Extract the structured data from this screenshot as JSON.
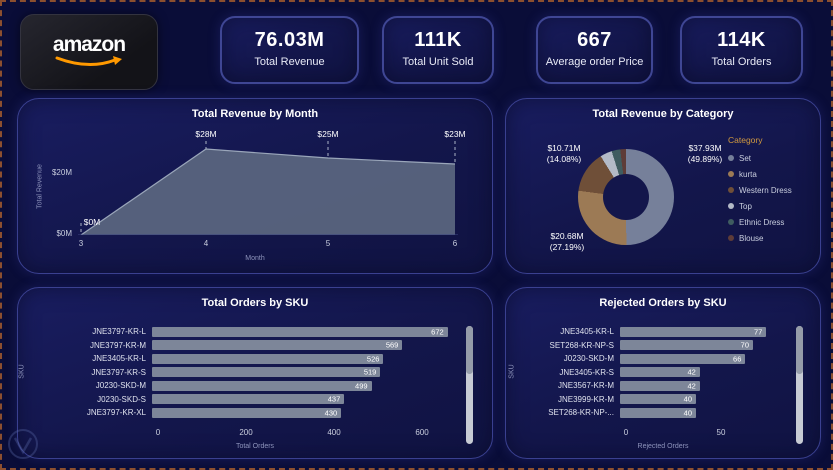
{
  "brand": {
    "name": "amazon"
  },
  "kpis": [
    {
      "value": "76.03M",
      "label": "Total Revenue"
    },
    {
      "value": "111K",
      "label": "Total Unit Sold"
    },
    {
      "value": "667",
      "label": "Average order Price"
    },
    {
      "value": "114K",
      "label": "Total Orders"
    }
  ],
  "chart_data": [
    {
      "id": "revenue_by_month",
      "type": "area",
      "title": "Total Revenue by Month",
      "xlabel": "Month",
      "ylabel": "Total Revenue",
      "x": [
        3,
        4,
        5,
        6
      ],
      "values_millions": [
        0,
        28,
        25,
        23
      ],
      "point_labels": [
        "$0M",
        "$28M",
        "$25M",
        "$23M"
      ],
      "yticks": [
        "$20M",
        "$0M"
      ],
      "xticks": [
        "3",
        "4",
        "5",
        "6"
      ],
      "ylim": [
        0,
        30
      ],
      "grid": false
    },
    {
      "id": "revenue_by_category",
      "type": "donut",
      "title": "Total Revenue by Category",
      "legend_title": "Category",
      "legend_position": "right",
      "slices": [
        {
          "name": "Set",
          "value": "$37.93M",
          "pct": 49.89,
          "pct_label": "(49.89%)",
          "color": "#76809a"
        },
        {
          "name": "kurta",
          "value": "$20.68M",
          "pct": 27.19,
          "pct_label": "(27.19%)",
          "color": "#9c7a55"
        },
        {
          "name": "Western Dress",
          "value": "$10.71M",
          "pct": 14.08,
          "pct_label": "(14.08%)",
          "color": "#6f4f38"
        },
        {
          "name": "Top",
          "pct": 4.0,
          "color": "#b3bac7"
        },
        {
          "name": "Ethnic Dress",
          "pct": 2.9,
          "color": "#3f5c60"
        },
        {
          "name": "Blouse",
          "pct": 1.94,
          "color": "#5e3c38"
        }
      ]
    },
    {
      "id": "orders_by_sku",
      "type": "bar",
      "title": "Total Orders by SKU",
      "orientation": "horizontal",
      "xlabel": "Total Orders",
      "ylabel": "SKU",
      "categories": [
        "JNE3797-KR-L",
        "JNE3797-KR-M",
        "JNE3405-KR-L",
        "JNE3797-KR-S",
        "J0230-SKD-M",
        "J0230-SKD-S",
        "JNE3797-KR-XL"
      ],
      "values": [
        672,
        569,
        526,
        519,
        499,
        437,
        430
      ],
      "xticks": [
        0,
        200,
        400,
        600
      ],
      "xlim": [
        0,
        700
      ]
    },
    {
      "id": "rejected_orders_by_sku",
      "type": "bar",
      "title": "Rejected Orders by SKU",
      "orientation": "horizontal",
      "xlabel": "Rejected Orders",
      "ylabel": "SKU",
      "categories": [
        "JNE3405-KR-L",
        "SET268-KR-NP-S",
        "J0230-SKD-M",
        "JNE3405-KR-S",
        "JNE3567-KR-M",
        "JNE3999-KR-M",
        "SET268-KR-NP-..."
      ],
      "values": [
        77,
        70,
        66,
        42,
        42,
        40,
        40
      ],
      "xticks": [
        0,
        50
      ],
      "xlim": [
        0,
        85
      ]
    }
  ]
}
